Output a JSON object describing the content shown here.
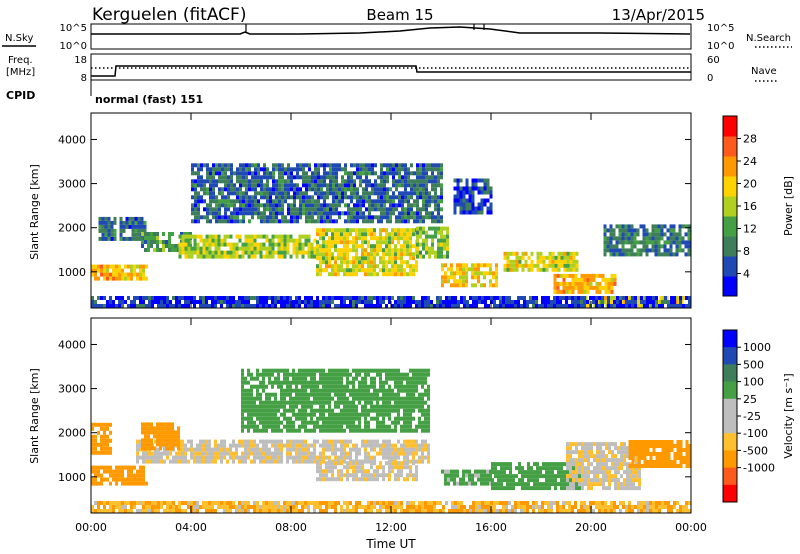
{
  "header": {
    "station": "Kerguelen (fitACF)",
    "beam": "Beam 15",
    "date": "13/Apr/2015"
  },
  "status_panels": {
    "nsky_label": "N.Sky",
    "nsearch_label": "N.Search",
    "freq_label_1": "Freq.",
    "freq_label_2": "[MHz]",
    "nave_label": "Nave",
    "cpid_label": "CPID",
    "cpid_text": "normal (fast) 151",
    "nsky_ticks": [
      "10^5",
      "10^0"
    ],
    "nsearch_ticks": [
      "10^5",
      "10^0"
    ],
    "freq_ticks": [
      "18",
      "8"
    ],
    "nave_ticks": [
      "60",
      "0"
    ]
  },
  "colors": {
    "power": [
      "#0000ff",
      "#1f4ab4",
      "#3e7e5a",
      "#45a045",
      "#b0d020",
      "#ffd200",
      "#ff9900",
      "#ff5a1e",
      "#ff0000"
    ],
    "velocity": [
      "#ff0000",
      "#ff5a1e",
      "#ff9900",
      "#ffc030",
      "#bebebe",
      "#bebebe",
      "#45a045",
      "#3e7e5a",
      "#1f4ab4",
      "#0000ff"
    ],
    "ground_scatter": "#bebebe"
  },
  "chart_data": [
    {
      "type": "heatmap",
      "name": "power",
      "ylabel": "Slant Range [km]",
      "ylim": [
        180,
        4600
      ],
      "yticks": [
        "4000",
        "3000",
        "2000",
        "1000"
      ],
      "xlim_hours": [
        0,
        24
      ],
      "colorbar": {
        "label": "Power [dB]",
        "ticks": [
          "28",
          "24",
          "20",
          "16",
          "12",
          "8",
          "4"
        ],
        "range": [
          0,
          32
        ]
      },
      "regions": [
        {
          "t0": 0.0,
          "t1": 2.2,
          "r0": 800,
          "r1": 1150,
          "value": 24
        },
        {
          "t0": 0.3,
          "t1": 2.2,
          "r0": 1700,
          "r1": 2200,
          "value": 8
        },
        {
          "t0": 2.0,
          "t1": 4.0,
          "r0": 1450,
          "r1": 1900,
          "value": 12
        },
        {
          "t0": 3.5,
          "t1": 9.0,
          "r0": 1300,
          "r1": 1800,
          "value": 18
        },
        {
          "t0": 9.0,
          "t1": 13.0,
          "r0": 900,
          "r1": 1900,
          "value": 20
        },
        {
          "t0": 13.0,
          "t1": 14.2,
          "r0": 1300,
          "r1": 2000,
          "value": 16
        },
        {
          "t0": 14.0,
          "t1": 16.2,
          "r0": 650,
          "r1": 1150,
          "value": 22
        },
        {
          "t0": 16.5,
          "t1": 19.5,
          "r0": 1000,
          "r1": 1400,
          "value": 20
        },
        {
          "t0": 18.5,
          "t1": 21.0,
          "r0": 500,
          "r1": 950,
          "value": 24
        },
        {
          "t0": 20.5,
          "t1": 24.0,
          "r0": 1350,
          "r1": 2000,
          "value": 10
        },
        {
          "t0": 19.5,
          "t1": 24.0,
          "r0": 180,
          "r1": 450,
          "value": 20
        },
        {
          "t0": 4.0,
          "t1": 14.0,
          "r0": 2100,
          "r1": 3400,
          "value": 8
        },
        {
          "t0": 14.5,
          "t1": 16.0,
          "r0": 2300,
          "r1": 3100,
          "value": 6
        },
        {
          "t0": 0.0,
          "t1": 24.0,
          "r0": 180,
          "r1": 380,
          "value": 4
        }
      ]
    },
    {
      "type": "heatmap",
      "name": "velocity",
      "ylabel": "Slant Range [km]",
      "ylim": [
        180,
        4600
      ],
      "yticks": [
        "4000",
        "3000",
        "2000",
        "1000"
      ],
      "xlim_hours": [
        0,
        24
      ],
      "xticks": [
        "00:00",
        "04:00",
        "08:00",
        "12:00",
        "16:00",
        "20:00",
        "00:00"
      ],
      "xlabel": "Time UT",
      "colorbar": {
        "label": "Velocity [m s⁻¹]",
        "ticks": [
          "1000",
          "500",
          "100",
          "25",
          "-25",
          "-100",
          "-500",
          "-1000"
        ]
      },
      "regions": [
        {
          "t0": 0.0,
          "t1": 2.2,
          "r0": 800,
          "r1": 1200,
          "value": -300
        },
        {
          "t0": 0.0,
          "t1": 0.8,
          "r0": 1500,
          "r1": 2200,
          "value": -200
        },
        {
          "t0": 1.8,
          "t1": 13.5,
          "r0": 1300,
          "r1": 1800,
          "value": 0
        },
        {
          "t0": 9.0,
          "t1": 13.0,
          "r0": 900,
          "r1": 1300,
          "value": 0
        },
        {
          "t0": 2.0,
          "t1": 3.5,
          "r0": 1600,
          "r1": 2200,
          "value": -400
        },
        {
          "t0": 14.0,
          "t1": 16.0,
          "r0": 800,
          "r1": 1150,
          "value": 150
        },
        {
          "t0": 16.0,
          "t1": 19.5,
          "r0": 700,
          "r1": 1300,
          "value": 300
        },
        {
          "t0": 19.0,
          "t1": 22.0,
          "r0": 700,
          "r1": 1700,
          "value": 0
        },
        {
          "t0": 21.5,
          "t1": 24.0,
          "r0": 1200,
          "r1": 1800,
          "value": -200
        },
        {
          "t0": 0.0,
          "t1": 24.0,
          "r0": 180,
          "r1": 420,
          "value": -80
        },
        {
          "t0": 6.0,
          "t1": 13.5,
          "r0": 2000,
          "r1": 3400,
          "value": 200
        }
      ]
    }
  ]
}
